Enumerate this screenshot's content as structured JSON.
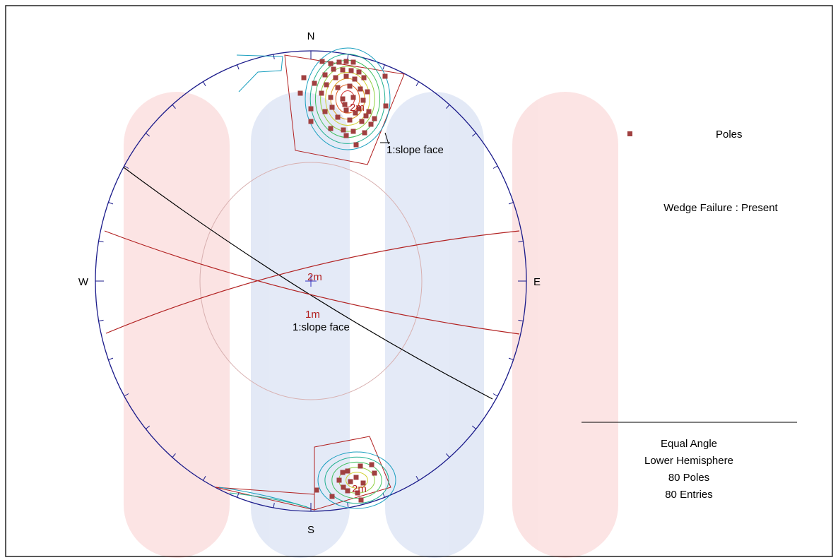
{
  "chart_data": {
    "type": "stereonet",
    "compass": {
      "north": "N",
      "east": "E",
      "south": "S",
      "west": "W"
    },
    "annotations": {
      "slope_face_pole": "1:slope face",
      "slope_face_plane": "1:slope face",
      "center_label": "2m",
      "plane_label": "1m",
      "north_cluster": "2m",
      "south_cluster": "2m"
    },
    "legend": {
      "poles": "Poles",
      "wedge": "Wedge Failure : Present"
    },
    "info": [
      "Equal Angle",
      "Lower Hemisphere",
      "80 Poles",
      "80 Entries"
    ]
  }
}
